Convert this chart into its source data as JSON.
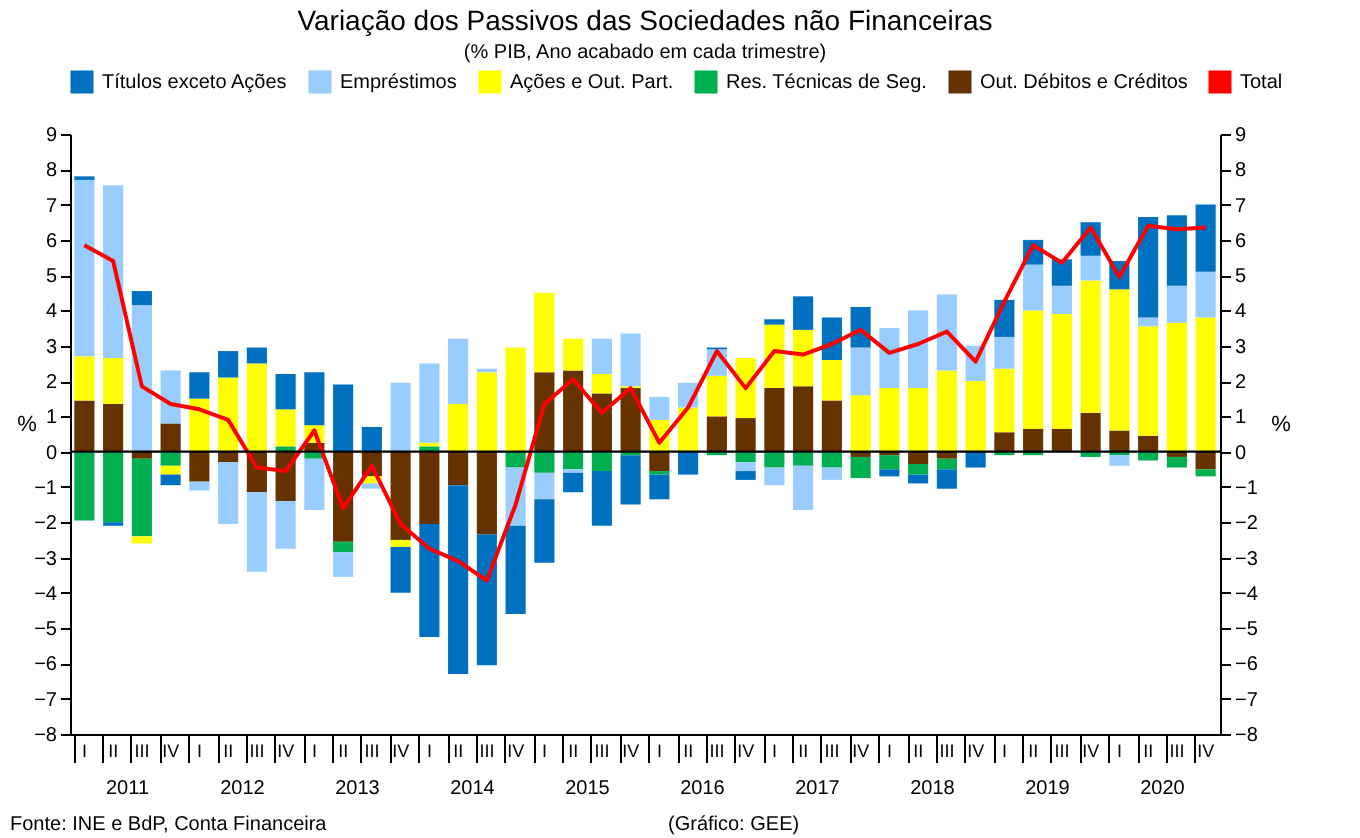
{
  "chart_data": {
    "type": "bar",
    "title": "Variação dos Passivos das Sociedades não Financeiras",
    "subtitle": "(% PIB, Ano acabado em cada trimestre)",
    "ylabel": "%",
    "y2label": "%",
    "categories": [
      "I",
      "II",
      "III",
      "IV",
      "I",
      "II",
      "III",
      "IV",
      "I",
      "II",
      "III",
      "IV",
      "I",
      "II",
      "III",
      "IV",
      "I",
      "II",
      "III",
      "IV",
      "I",
      "II",
      "III",
      "IV",
      "I",
      "II",
      "III",
      "IV",
      "I",
      "II",
      "III",
      "IV",
      "I",
      "II",
      "III",
      "IV",
      "I",
      "II",
      "III",
      "IV"
    ],
    "stacked": true,
    "series": [
      {
        "name": "Out. Débitos e Créditos",
        "color": "#663300",
        "values": [
          1.45,
          1.35,
          -0.2,
          0.8,
          -0.85,
          -0.3,
          -1.15,
          -1.4,
          0.25,
          -2.55,
          -0.7,
          -2.5,
          -2.05,
          -0.95,
          -2.35,
          0,
          2.25,
          2.3,
          1.65,
          1.8,
          -0.55,
          0,
          1.0,
          0.95,
          1.8,
          1.85,
          1.45,
          -0.15,
          -0.1,
          -0.35,
          -0.2,
          0,
          0.55,
          0.65,
          0.65,
          1.1,
          0.6,
          0.45,
          -0.15,
          -0.5
        ]
      },
      {
        "name": "Res. Técnicas de Seg.",
        "color": "#00b050",
        "values": [
          -1.95,
          -2.0,
          -2.2,
          -0.4,
          0,
          0,
          0,
          0.15,
          -0.2,
          -0.3,
          0,
          0,
          0.15,
          0,
          0,
          -0.45,
          -0.6,
          -0.5,
          -0.55,
          -0.1,
          -0.1,
          0,
          -0.1,
          -0.3,
          -0.45,
          -0.4,
          -0.45,
          -0.6,
          -0.4,
          -0.3,
          -0.3,
          0,
          -0.1,
          -0.1,
          null,
          -0.15,
          -0.1,
          -0.25,
          -0.3,
          -0.2
        ]
      },
      {
        "name": "Ações e Out. Part.",
        "color": "#ffff00",
        "values": [
          1.25,
          1.3,
          -0.2,
          -0.25,
          1.5,
          2.1,
          2.5,
          1.05,
          0.5,
          null,
          -0.2,
          -0.2,
          0.1,
          1.35,
          2.25,
          2.95,
          2.25,
          0.9,
          0.55,
          0.05,
          0.9,
          1.25,
          1.15,
          1.7,
          1.8,
          1.6,
          1.15,
          1.6,
          1.8,
          1.8,
          2.3,
          2.0,
          1.8,
          3.35,
          3.25,
          3.75,
          4.0,
          3.1,
          3.65,
          3.8
        ]
      },
      {
        "name": "Empréstimos",
        "color": "#99ccff",
        "values": [
          5.0,
          4.9,
          4.15,
          1.5,
          -0.25,
          -1.75,
          -2.25,
          -1.35,
          -1.45,
          -0.7,
          -0.15,
          1.95,
          2.25,
          1.85,
          0.1,
          -1.65,
          -0.75,
          -0.1,
          1.0,
          1.5,
          0.65,
          0.7,
          0.75,
          -0.25,
          -0.5,
          -1.25,
          -0.35,
          1.35,
          1.7,
          2.2,
          2.15,
          1.0,
          0.9,
          1.3,
          0.8,
          0.7,
          -0.3,
          0.25,
          1.05,
          1.3
        ]
      },
      {
        "name": "Títulos exceto Ações",
        "color": "#0070c0",
        "values": [
          0.1,
          -0.1,
          0.4,
          -0.3,
          0.75,
          0.75,
          0.45,
          1.0,
          1.5,
          1.9,
          0.7,
          -1.3,
          -3.2,
          -5.35,
          -3.7,
          -2.5,
          -1.8,
          -0.55,
          -1.55,
          -1.4,
          -0.7,
          -0.65,
          0.05,
          -0.25,
          0.15,
          0.95,
          1.2,
          1.15,
          -0.2,
          -0.25,
          -0.55,
          -0.45,
          1.05,
          0.7,
          0.75,
          0.95,
          0.8,
          2.85,
          2.0,
          1.9
        ]
      },
      {
        "name": "Total",
        "type": "line",
        "color": "#ff0000",
        "values": [
          5.85,
          5.4,
          1.85,
          1.35,
          1.2,
          0.9,
          -0.45,
          -0.55,
          0.6,
          -1.6,
          -0.4,
          -2.05,
          -2.75,
          -3.1,
          -3.65,
          -1.5,
          1.35,
          2.05,
          1.1,
          1.8,
          0.25,
          1.25,
          2.85,
          1.8,
          2.85,
          2.75,
          3.05,
          3.45,
          2.8,
          3.05,
          3.4,
          2.55,
          4.25,
          5.85,
          5.35,
          6.35,
          4.95,
          6.4,
          6.3,
          6.35
        ]
      }
    ],
    "ylim": [
      -8,
      9
    ],
    "yticks": [
      -8,
      -7,
      -6,
      -5,
      -4,
      -3,
      -2,
      -1,
      0,
      1,
      2,
      3,
      4,
      5,
      6,
      7,
      8,
      9
    ],
    "y2lim": [
      -8,
      9
    ],
    "y2ticks": [
      -8,
      -7,
      -6,
      -5,
      -4,
      -3,
      -2,
      -1,
      0,
      1,
      2,
      3,
      4,
      5,
      6,
      7,
      8,
      9
    ],
    "ref_lines": [
      {
        "axis": "y",
        "value": 0,
        "color": "#000000"
      }
    ],
    "grid": false,
    "legend": "top",
    "annotations": [
      "2011",
      "2012",
      "2013",
      "2014",
      "2015",
      "2016",
      "2017",
      "2018",
      "2019",
      "2020",
      "Fonte: INE e BdP, Conta Financeira",
      "(Gráfico: GEE)"
    ]
  }
}
